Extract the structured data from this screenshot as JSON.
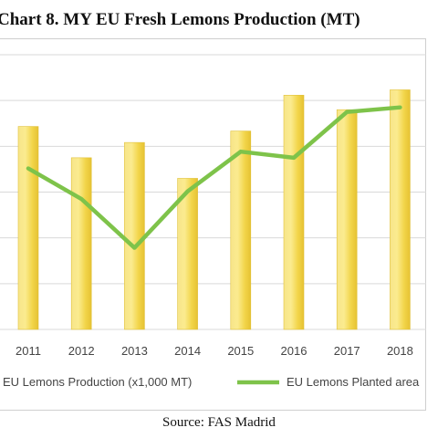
{
  "chart_data": {
    "type": "bar",
    "title": "Chart 8.  MY EU Fresh Lemons Production (MT)",
    "categories": [
      "2011",
      "2012",
      "2013",
      "2014",
      "2015",
      "2016",
      "2017",
      "2018"
    ],
    "series": [
      {
        "name": "EU Lemons Production (x1,000 MT)",
        "type": "bar",
        "color": "#f2d64b",
        "values": [
          1330,
          1125,
          1225,
          990,
          1300,
          1535,
          1440,
          1570
        ]
      },
      {
        "name": "EU Lemons Planted area",
        "type": "line",
        "color": "#7ec34a",
        "values": [
          1055,
          855,
          535,
          905,
          1165,
          1125,
          1425,
          1455
        ]
      }
    ],
    "ylim": [
      0,
      1800
    ],
    "grid": true,
    "legend": "bottom"
  },
  "source": "Source: FAS Madrid"
}
